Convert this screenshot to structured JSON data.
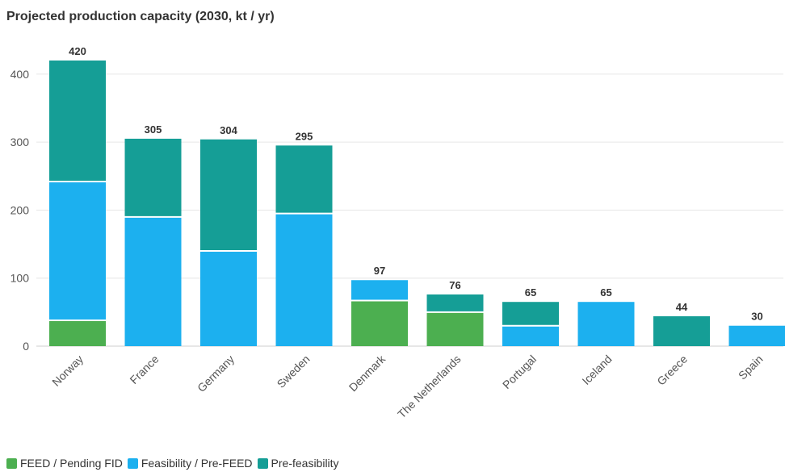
{
  "chart_data": {
    "type": "bar",
    "stacked": true,
    "title": "Projected production capacity (2030, kt / yr)",
    "categories": [
      "Norway",
      "France",
      "Germany",
      "Sweden",
      "Denmark",
      "The Netherlands",
      "Portugal",
      "Iceland",
      "Greece",
      "Spain"
    ],
    "series": [
      {
        "name": "FEED / Pending FID",
        "color": "#4caf50",
        "values": [
          38,
          0,
          0,
          0,
          67,
          50,
          0,
          0,
          0,
          0
        ]
      },
      {
        "name": "Feasibility / Pre-FEED",
        "color": "#1cb0ef",
        "values": [
          204,
          190,
          140,
          195,
          30,
          0,
          30,
          65,
          0,
          30
        ]
      },
      {
        "name": "Pre-feasibility",
        "color": "#159e96",
        "values": [
          178,
          115,
          164,
          100,
          0,
          26,
          35,
          0,
          44,
          0
        ]
      }
    ],
    "totals": [
      "420",
      "305",
      "304",
      "295",
      "97",
      "76",
      "65",
      "65",
      "44",
      "30"
    ],
    "yticks": [
      "0",
      "100",
      "200",
      "300",
      "400"
    ],
    "ylim": [
      0,
      420
    ],
    "grid": true,
    "legend_position": "bottom-left"
  }
}
